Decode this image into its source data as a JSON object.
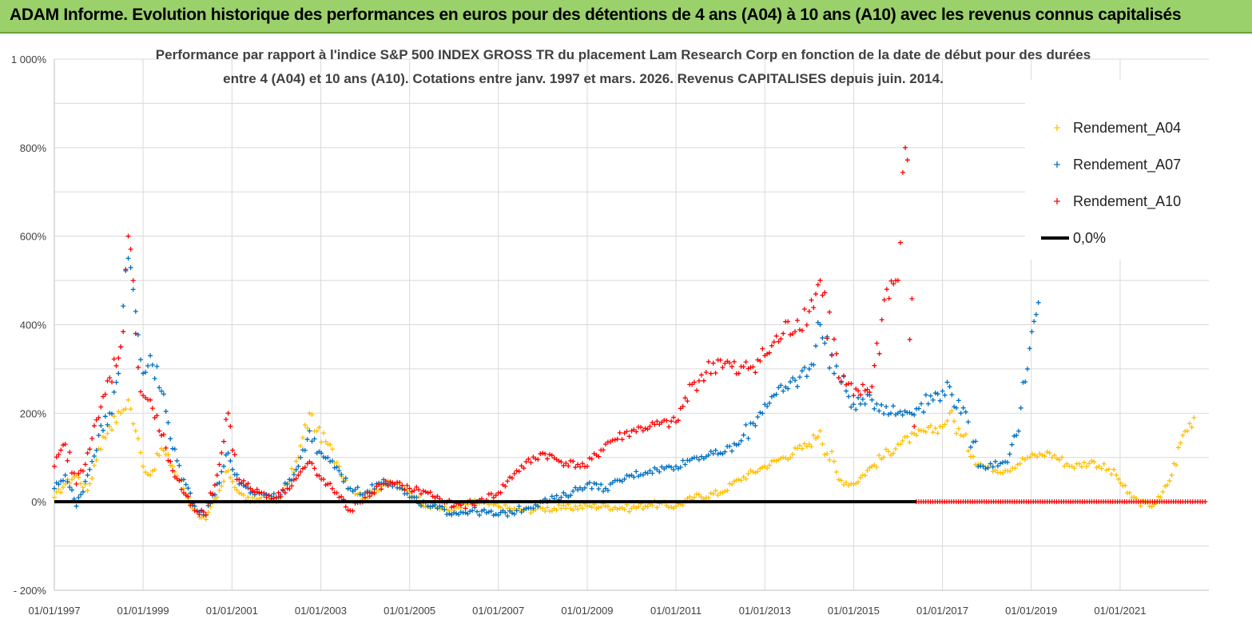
{
  "banner": {
    "title": "ADAM Informe. Evolution historique des performances en euros pour des détentions de 4 ans (A04) à 10 ans (A10) avec les revenus connus capitalisés"
  },
  "chart_data": {
    "type": "scatter",
    "title_lines": [
      "Performance par rapport à l'indice S&P 500 INDEX GROSS TR  du placement Lam Research Corp en fonction de la date de début pour des durées",
      "entre 4 (A04) et 10 ans (A10). Cotations entre janv. 1997 et mars. 2026. Revenus CAPITALISES depuis juin. 2014."
    ],
    "xlabel": "",
    "ylabel": "",
    "xlim": [
      "1997-01-01",
      "2023-01-01"
    ],
    "ylim": [
      -200,
      1000
    ],
    "y_unit": "%",
    "x_ticks": [
      "01/01/1997",
      "01/01/1999",
      "01/01/2001",
      "01/01/2003",
      "01/01/2005",
      "01/01/2007",
      "01/01/2009",
      "01/01/2011",
      "01/01/2013",
      "01/01/2015",
      "01/01/2017",
      "01/01/2019",
      "01/01/2021"
    ],
    "y_ticks": [
      "1 000%",
      "800%",
      "600%",
      "400%",
      "200%",
      "0%",
      "- 200%"
    ],
    "y_tick_values": [
      1000,
      800,
      600,
      400,
      200,
      0,
      -200
    ],
    "grid": true,
    "legend_position": "right",
    "series": [
      {
        "name": "Rendement_A04",
        "color": "#ffc000",
        "marker": "plus",
        "points": [
          [
            "1997-01-01",
            10
          ],
          [
            "1997-04-01",
            40
          ],
          [
            "1997-07-01",
            60
          ],
          [
            "1997-10-01",
            25
          ],
          [
            "1998-01-01",
            120
          ],
          [
            "1998-04-01",
            170
          ],
          [
            "1998-07-01",
            200
          ],
          [
            "1998-09-01",
            230
          ],
          [
            "1998-11-01",
            160
          ],
          [
            "1999-01-01",
            80
          ],
          [
            "1999-03-01",
            60
          ],
          [
            "1999-06-01",
            120
          ],
          [
            "1999-09-01",
            80
          ],
          [
            "1999-12-01",
            30
          ],
          [
            "2000-03-01",
            -20
          ],
          [
            "2000-06-01",
            -40
          ],
          [
            "2000-09-01",
            10
          ],
          [
            "2000-12-01",
            70
          ],
          [
            "2001-03-01",
            20
          ],
          [
            "2001-06-01",
            0
          ],
          [
            "2001-09-01",
            10
          ],
          [
            "2002-01-01",
            0
          ],
          [
            "2002-04-01",
            40
          ],
          [
            "2002-07-01",
            100
          ],
          [
            "2002-10-01",
            200
          ],
          [
            "2002-12-01",
            160
          ],
          [
            "2003-03-01",
            130
          ],
          [
            "2003-06-01",
            80
          ],
          [
            "2003-09-01",
            30
          ],
          [
            "2004-01-01",
            10
          ],
          [
            "2004-06-01",
            40
          ],
          [
            "2004-09-01",
            40
          ],
          [
            "2005-01-01",
            20
          ],
          [
            "2005-06-01",
            -10
          ],
          [
            "2006-01-01",
            -20
          ],
          [
            "2006-06-01",
            0
          ],
          [
            "2007-01-01",
            -10
          ],
          [
            "2007-06-01",
            -20
          ],
          [
            "2008-01-01",
            -15
          ],
          [
            "2008-06-01",
            -15
          ],
          [
            "2009-01-01",
            -10
          ],
          [
            "2009-06-01",
            -10
          ],
          [
            "2010-01-01",
            -15
          ],
          [
            "2010-06-01",
            -5
          ],
          [
            "2011-01-01",
            -10
          ],
          [
            "2011-06-01",
            10
          ],
          [
            "2012-01-01",
            20
          ],
          [
            "2012-06-01",
            50
          ],
          [
            "2013-01-01",
            80
          ],
          [
            "2013-06-01",
            100
          ],
          [
            "2014-01-01",
            130
          ],
          [
            "2014-04-01",
            160
          ],
          [
            "2014-09-01",
            50
          ],
          [
            "2015-01-01",
            40
          ],
          [
            "2015-06-01",
            80
          ],
          [
            "2016-01-01",
            130
          ],
          [
            "2016-06-01",
            150
          ],
          [
            "2017-01-01",
            170
          ],
          [
            "2017-03-01",
            200
          ],
          [
            "2017-06-01",
            150
          ],
          [
            "2017-12-01",
            80
          ],
          [
            "2018-06-01",
            70
          ],
          [
            "2018-12-01",
            100
          ],
          [
            "2019-06-01",
            110
          ],
          [
            "2019-12-01",
            80
          ],
          [
            "2020-06-01",
            90
          ],
          [
            "2020-12-01",
            60
          ],
          [
            "2021-03-01",
            20
          ],
          [
            "2021-06-01",
            0
          ],
          [
            "2021-09-01",
            -10
          ],
          [
            "2021-12-01",
            10
          ],
          [
            "2022-03-01",
            60
          ],
          [
            "2022-06-01",
            150
          ],
          [
            "2022-09-01",
            190
          ]
        ]
      },
      {
        "name": "Rendement_A07",
        "color": "#0070c0",
        "marker": "plus",
        "points": [
          [
            "1997-01-01",
            30
          ],
          [
            "1997-04-01",
            60
          ],
          [
            "1997-07-01",
            -10
          ],
          [
            "1997-10-01",
            60
          ],
          [
            "1998-01-01",
            150
          ],
          [
            "1998-04-01",
            200
          ],
          [
            "1998-07-01",
            350
          ],
          [
            "1998-09-01",
            550
          ],
          [
            "1998-11-01",
            430
          ],
          [
            "1999-01-01",
            290
          ],
          [
            "1999-03-01",
            330
          ],
          [
            "1999-06-01",
            250
          ],
          [
            "1999-09-01",
            120
          ],
          [
            "1999-12-01",
            50
          ],
          [
            "2000-03-01",
            -10
          ],
          [
            "2000-06-01",
            -30
          ],
          [
            "2000-09-01",
            40
          ],
          [
            "2000-12-01",
            110
          ],
          [
            "2001-03-01",
            40
          ],
          [
            "2001-06-01",
            20
          ],
          [
            "2001-09-01",
            20
          ],
          [
            "2002-01-01",
            10
          ],
          [
            "2002-04-01",
            40
          ],
          [
            "2002-07-01",
            80
          ],
          [
            "2002-10-01",
            160
          ],
          [
            "2002-12-01",
            110
          ],
          [
            "2003-03-01",
            100
          ],
          [
            "2003-06-01",
            70
          ],
          [
            "2003-09-01",
            30
          ],
          [
            "2004-01-01",
            20
          ],
          [
            "2004-06-01",
            50
          ],
          [
            "2004-09-01",
            40
          ],
          [
            "2005-01-01",
            10
          ],
          [
            "2005-06-01",
            -10
          ],
          [
            "2006-01-01",
            -25
          ],
          [
            "2006-06-01",
            -20
          ],
          [
            "2007-01-01",
            -30
          ],
          [
            "2007-06-01",
            -20
          ],
          [
            "2008-01-01",
            0
          ],
          [
            "2008-06-01",
            10
          ],
          [
            "2009-01-01",
            40
          ],
          [
            "2009-06-01",
            30
          ],
          [
            "2010-01-01",
            60
          ],
          [
            "2010-06-01",
            70
          ],
          [
            "2011-01-01",
            80
          ],
          [
            "2011-06-01",
            100
          ],
          [
            "2012-01-01",
            110
          ],
          [
            "2012-06-01",
            130
          ],
          [
            "2013-01-01",
            220
          ],
          [
            "2013-06-01",
            250
          ],
          [
            "2014-01-01",
            300
          ],
          [
            "2014-04-01",
            400
          ],
          [
            "2014-09-01",
            280
          ],
          [
            "2015-01-01",
            220
          ],
          [
            "2015-06-01",
            230
          ],
          [
            "2016-01-01",
            200
          ],
          [
            "2016-06-01",
            210
          ],
          [
            "2017-01-01",
            250
          ],
          [
            "2017-03-01",
            260
          ],
          [
            "2017-06-01",
            200
          ],
          [
            "2017-12-01",
            80
          ],
          [
            "2018-06-01",
            90
          ],
          [
            "2018-09-01",
            150
          ],
          [
            "2018-12-01",
            300
          ],
          [
            "2019-03-01",
            450
          ]
        ]
      },
      {
        "name": "Rendement_A10",
        "color": "#ff0000",
        "marker": "plus",
        "points": [
          [
            "1997-01-01",
            80
          ],
          [
            "1997-04-01",
            130
          ],
          [
            "1997-07-01",
            40
          ],
          [
            "1997-10-01",
            110
          ],
          [
            "1998-01-01",
            190
          ],
          [
            "1998-04-01",
            280
          ],
          [
            "1998-07-01",
            350
          ],
          [
            "1998-09-01",
            600
          ],
          [
            "1998-11-01",
            380
          ],
          [
            "1999-01-01",
            240
          ],
          [
            "1999-03-01",
            230
          ],
          [
            "1999-06-01",
            150
          ],
          [
            "1999-09-01",
            70
          ],
          [
            "1999-12-01",
            20
          ],
          [
            "2000-03-01",
            -20
          ],
          [
            "2000-06-01",
            -30
          ],
          [
            "2000-09-01",
            60
          ],
          [
            "2000-12-01",
            200
          ],
          [
            "2001-03-01",
            50
          ],
          [
            "2001-06-01",
            30
          ],
          [
            "2001-09-01",
            20
          ],
          [
            "2002-01-01",
            10
          ],
          [
            "2002-04-01",
            30
          ],
          [
            "2002-07-01",
            60
          ],
          [
            "2002-10-01",
            90
          ],
          [
            "2002-12-01",
            60
          ],
          [
            "2003-03-01",
            40
          ],
          [
            "2003-06-01",
            10
          ],
          [
            "2003-09-01",
            -20
          ],
          [
            "2004-01-01",
            10
          ],
          [
            "2004-06-01",
            40
          ],
          [
            "2004-09-01",
            40
          ],
          [
            "2005-01-01",
            30
          ],
          [
            "2005-06-01",
            20
          ],
          [
            "2006-01-01",
            -10
          ],
          [
            "2006-06-01",
            -5
          ],
          [
            "2007-01-01",
            20
          ],
          [
            "2007-06-01",
            70
          ],
          [
            "2008-01-01",
            110
          ],
          [
            "2008-06-01",
            90
          ],
          [
            "2009-01-01",
            80
          ],
          [
            "2009-06-01",
            130
          ],
          [
            "2010-01-01",
            160
          ],
          [
            "2010-06-01",
            170
          ],
          [
            "2011-01-01",
            180
          ],
          [
            "2011-06-01",
            270
          ],
          [
            "2012-01-01",
            320
          ],
          [
            "2012-06-01",
            290
          ],
          [
            "2013-01-01",
            330
          ],
          [
            "2013-06-01",
            380
          ],
          [
            "2014-01-01",
            430
          ],
          [
            "2014-04-01",
            500
          ],
          [
            "2014-09-01",
            280
          ],
          [
            "2015-01-01",
            240
          ],
          [
            "2015-06-01",
            260
          ],
          [
            "2015-10-01",
            480
          ],
          [
            "2016-01-01",
            500
          ],
          [
            "2016-03-01",
            800
          ],
          [
            "2016-06-01",
            0
          ],
          [
            "2017-06-01",
            0
          ],
          [
            "2018-06-01",
            0
          ],
          [
            "2019-06-01",
            0
          ],
          [
            "2020-06-01",
            0
          ],
          [
            "2021-06-01",
            0
          ],
          [
            "2022-06-01",
            0
          ],
          [
            "2022-12-01",
            0
          ]
        ]
      },
      {
        "name": "0,0%",
        "color": "#000000",
        "marker": "line",
        "points": [
          [
            "1997-01-01",
            0
          ],
          [
            "2016-06-01",
            0
          ]
        ]
      }
    ]
  }
}
